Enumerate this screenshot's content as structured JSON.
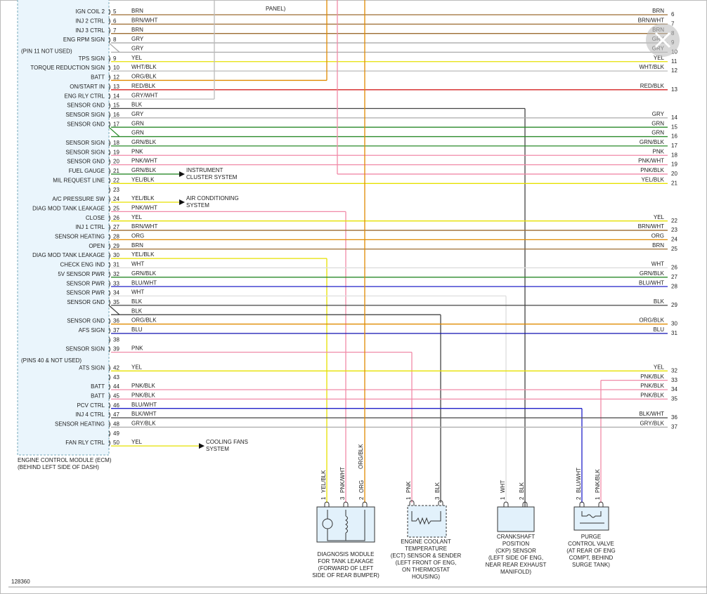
{
  "top_note": "PANEL)",
  "ecm": {
    "label": [
      "ENGINE CONTROL MODULE (ECM)",
      "(BEHIND LEFT SIDE OF DASH)"
    ]
  },
  "rows": [
    {
      "label": "IGN COIL 2",
      "pin": 5,
      "wire": "BRN",
      "right_wire": "BRN",
      "right_pin": 6,
      "color": "#9c6b30"
    },
    {
      "label": "INJ 2 CTRL",
      "pin": 6,
      "wire": "BRN/WHT",
      "right_wire": "BRN/WHT",
      "right_pin": 7,
      "color": "#9c6b30"
    },
    {
      "label": "INJ 3 CTRL",
      "pin": 7,
      "wire": "BRN",
      "right_wire": "BRN",
      "right_pin": 8,
      "color": "#9c6b30"
    },
    {
      "label": "ENG RPM SIGN",
      "pin": 8,
      "wire": "GRY",
      "right_wire": "GRY",
      "right_pin": 9,
      "color": "#aaaaaa"
    },
    {
      "label": "(PIN 11 NOT USED)",
      "wire": "GRY",
      "right_wire": "GRY",
      "right_pin": 10,
      "color": "#aaaaaa"
    },
    {
      "label": "TPS SIGN",
      "pin": 9,
      "wire": "YEL",
      "right_wire": "YEL",
      "right_pin": 11,
      "color": "#e6e000"
    },
    {
      "label": "TORQUE REDUCTION SIGN",
      "pin": 10,
      "wire": "WHT/BLK",
      "right_wire": "WHT/BLK",
      "right_pin": 12,
      "color": "#bbbbbb"
    },
    {
      "label": "BATT",
      "pin": 12,
      "wire": "ORG/BLK",
      "color": "#e08a00"
    },
    {
      "label": "ON/START IN",
      "pin": 13,
      "wire": "RED/BLK",
      "right_wire": "RED/BLK",
      "right_pin": 13,
      "color": "#d42020"
    },
    {
      "label": "ENG RLY CTRL",
      "pin": 14,
      "wire": "GRY/WHT",
      "color": "#bbbbbb"
    },
    {
      "label": "SENSOR GND",
      "pin": 15,
      "wire": "BLK",
      "color": "#444444"
    },
    {
      "label": "SENSOR SIGN",
      "pin": 16,
      "wire": "GRY",
      "right_wire": "GRY",
      "right_pin": 14,
      "color": "#aaaaaa"
    },
    {
      "label": "SENSOR GND",
      "pin": 17,
      "wire": "GRN",
      "right_wire": "GRN",
      "right_pin": 15,
      "color": "#2a8a2a"
    },
    {
      "wire": "GRN",
      "right_wire": "GRN",
      "right_pin": 16,
      "color": "#2a8a2a"
    },
    {
      "label": "SENSOR SIGN",
      "pin": 18,
      "wire": "GRN/BLK",
      "right_wire": "GRN/BLK",
      "right_pin": 17,
      "color": "#2a8a2a"
    },
    {
      "label": "SENSOR SIGN",
      "pin": 19,
      "wire": "PNK",
      "right_wire": "PNK",
      "right_pin": 18,
      "color": "#f08aa8"
    },
    {
      "label": "SENSOR GND",
      "pin": 20,
      "wire": "PNK/WHT",
      "right_wire": "PNK/WHT",
      "right_pin": 19,
      "color": "#f08aa8"
    },
    {
      "label": "FUEL GAUGE",
      "pin": 21,
      "wire": "GRN/BLK",
      "to_system": [
        "INSTRUMENT",
        "CLUSTER SYSTEM"
      ],
      "right_wire": "PNK/BLK",
      "right_pin": 20,
      "color": "#2a8a2a",
      "right_color": "#f08aa8"
    },
    {
      "label": "MIL REQUEST LINE",
      "pin": 22,
      "wire": "YEL/BLK",
      "right_wire": "YEL/BLK",
      "right_pin": 21,
      "color": "#e6e000"
    },
    {
      "pin": 23
    },
    {
      "label": "A/C PRESSURE SW",
      "pin": 24,
      "wire": "YEL/BLK",
      "to_system": [
        "AIR CONDITIONING",
        "SYSTEM"
      ],
      "color": "#e6e000"
    },
    {
      "label": "DIAG MOD TANK LEAKAGE",
      "pin": 25,
      "wire": "PNK/WHT",
      "color": "#f08aa8"
    },
    {
      "label": "CLOSE",
      "pin": 26,
      "wire": "YEL",
      "right_wire": "YEL",
      "right_pin": 22,
      "color": "#e6e000"
    },
    {
      "label": "INJ 1 CTRL",
      "pin": 27,
      "wire": "BRN/WHT",
      "right_wire": "BRN/WHT",
      "right_pin": 23,
      "color": "#9c6b30"
    },
    {
      "label": "SENSOR HEATING",
      "pin": 28,
      "wire": "ORG",
      "right_wire": "ORG",
      "right_pin": 24,
      "color": "#e08a00"
    },
    {
      "label": "OPEN",
      "pin": 29,
      "wire": "BRN",
      "right_wire": "BRN",
      "right_pin": 25,
      "color": "#9c6b30"
    },
    {
      "label": "DIAG MOD TANK LEAKAGE",
      "pin": 30,
      "wire": "YEL/BLK",
      "color": "#e6e000"
    },
    {
      "label": "CHECK ENG IND",
      "pin": 31,
      "wire": "WHT",
      "right_wire": "WHT",
      "right_pin": 26,
      "color": "#dddddd"
    },
    {
      "label": "5V SENSOR PWR",
      "pin": 32,
      "wire": "GRN/BLK",
      "right_wire": "GRN/BLK",
      "right_pin": 27,
      "color": "#2a8a2a"
    },
    {
      "label": "SENSOR PWR",
      "pin": 33,
      "wire": "BLU/WHT",
      "right_wire": "BLU/WHT",
      "right_pin": 28,
      "color": "#2020c8"
    },
    {
      "label": "SENSOR PWR",
      "pin": 34,
      "wire": "WHT",
      "color": "#dddddd"
    },
    {
      "label": "SENSOR GND",
      "pin": 35,
      "wire": "BLK",
      "right_wire": "BLK",
      "right_pin": 29,
      "color": "#444444"
    },
    {
      "wire": "BLK",
      "color": "#444444"
    },
    {
      "label": "SENSOR GND",
      "pin": 36,
      "wire": "ORG/BLK",
      "right_wire": "ORG/BLK",
      "right_pin": 30,
      "color": "#e08a00"
    },
    {
      "label": "AFS SIGN",
      "pin": 37,
      "wire": "BLU",
      "right_wire": "BLU",
      "right_pin": 31,
      "color": "#1010b0"
    },
    {
      "pin": 38
    },
    {
      "label": "SENSOR SIGN",
      "pin": 39,
      "wire": "PNK",
      "color": "#f08aa8"
    },
    {
      "label": "(PINS 40 & NOT USED)"
    },
    {
      "label": "ATS SIGN",
      "pin": 42,
      "wire": "YEL",
      "right_wire": "YEL",
      "right_pin": 32,
      "color": "#e6e000"
    },
    {
      "pin": 43,
      "right_wire": "PNK/BLK",
      "right_pin": 33,
      "right_color": "#f08aa8"
    },
    {
      "label": "BATT",
      "pin": 44,
      "wire": "PNK/BLK",
      "right_wire": "PNK/BLK",
      "right_pin": 34,
      "color": "#f08aa8"
    },
    {
      "label": "BATT",
      "pin": 45,
      "wire": "PNK/BLK",
      "right_wire": "PNK/BLK",
      "right_pin": 35,
      "color": "#f08aa8"
    },
    {
      "label": "PCV CTRL",
      "pin": 46,
      "wire": "BLU/WHT",
      "color": "#2020c8"
    },
    {
      "label": "INJ 4 CTRL",
      "pin": 47,
      "wire": "BLK/WHT",
      "right_wire": "BLK/WHT",
      "right_pin": 36,
      "color": "#555555"
    },
    {
      "label": "SENSOR HEATING",
      "pin": 48,
      "wire": "GRY/BLK",
      "right_wire": "GRY/BLK",
      "right_pin": 37,
      "color": "#aaaaaa"
    },
    {
      "pin": 49
    },
    {
      "label": "FAN RLY CTRL",
      "pin": 50,
      "wire": "YEL",
      "to_system": [
        "COOLING FANS",
        "SYSTEM"
      ],
      "color": "#e6e000"
    }
  ],
  "components": [
    {
      "label": [
        "DIAGNOSIS MODULE",
        "FOR TANK LEAKAGE",
        "(FORWARD OF LEFT",
        "SIDE OF REAR BUMPER)"
      ],
      "pins": [
        1,
        3,
        2
      ],
      "wires": [
        "YEL/BLK",
        "PNK/WHT",
        "ORG"
      ],
      "extra_wire": "ORG/BLK"
    },
    {
      "label": [
        "ENGINE COOLANT",
        "TEMPERATURE",
        "(ECT) SENSOR & SENDER",
        "(LEFT FRONT OF ENG,",
        "ON THERMOSTAT",
        "HOUSING)"
      ],
      "pins": [
        1,
        3
      ],
      "wires": [
        "PNK",
        "BLK"
      ]
    },
    {
      "label": [
        "CRANKSHAFT",
        "POSITION",
        "(CKP) SENSOR",
        "(LEFT SIDE OF ENG,",
        "NEAR REAR EXHAUST",
        "MANIFOLD)"
      ],
      "pins": [
        1,
        2
      ],
      "wires": [
        "WHT",
        "BLK"
      ]
    },
    {
      "label": [
        "PURGE",
        "CONTROL VALVE",
        "(AT REAR OF ENG",
        "COMPT, BEHIND",
        "SURGE TANK)"
      ],
      "pins": [
        2,
        1
      ],
      "wires": [
        "BLU/WHT",
        "PNK/BLK"
      ]
    }
  ],
  "footer": {
    "id": "128360"
  }
}
